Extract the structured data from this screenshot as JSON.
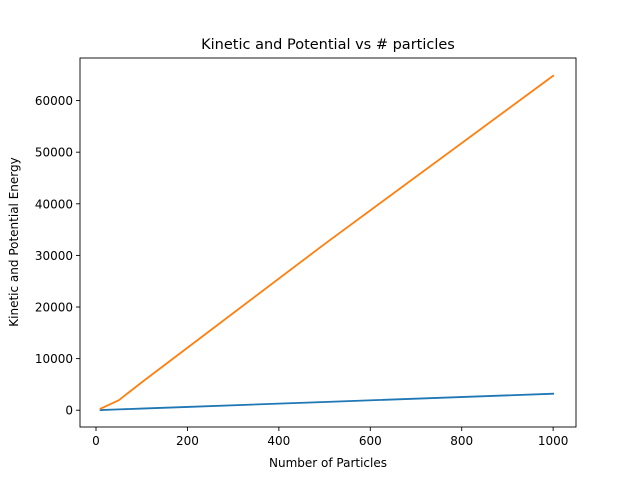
{
  "chart_data": {
    "type": "line",
    "title": "Kinetic and Potential vs # particles",
    "xlabel": "Number of Particles",
    "ylabel": "Kinetic and Potential Energy",
    "xlim": [
      -35,
      1050
    ],
    "ylim": [
      -3250,
      68250
    ],
    "xticks": [
      0,
      200,
      400,
      600,
      800,
      1000
    ],
    "yticks": [
      0,
      10000,
      20000,
      30000,
      40000,
      50000,
      60000
    ],
    "grid": false,
    "legend": "none",
    "series": [
      {
        "color": "#1f77b4",
        "x": [
          10,
          50,
          100,
          200,
          500,
          1000
        ],
        "y": [
          30,
          160,
          320,
          640,
          1600,
          3200
        ]
      },
      {
        "color": "#ff7f0e",
        "x": [
          10,
          50,
          100,
          200,
          500,
          1000
        ],
        "y": [
          300,
          1950,
          5400,
          12100,
          32200,
          64800
        ]
      }
    ]
  }
}
